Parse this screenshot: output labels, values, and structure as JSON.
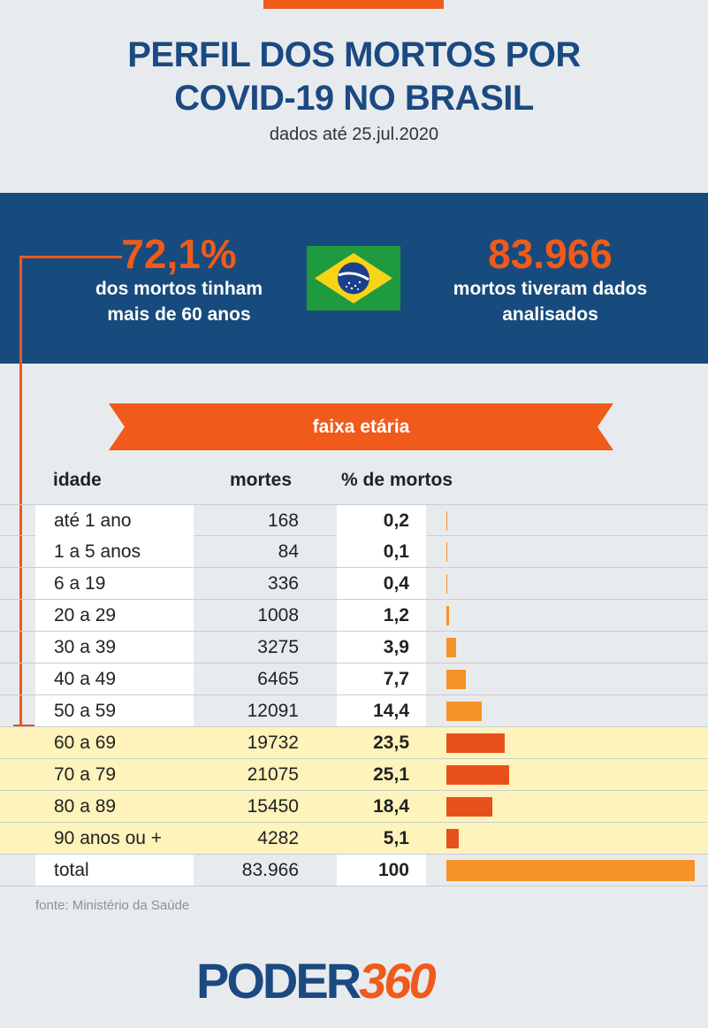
{
  "title_lines": [
    "PERFIL DOS MORTOS POR",
    "COVID-19 NO BRASIL"
  ],
  "subtitle": "dados até 25.jul.2020",
  "stats": {
    "left": {
      "value": "72,1%",
      "desc_lines": [
        "dos mortos tinham",
        "mais de 60 anos"
      ]
    },
    "right": {
      "value": "83.966",
      "desc_lines": [
        "mortos tiveram dados",
        "analisados"
      ]
    }
  },
  "section_label": "faixa etária",
  "columns": {
    "idade": "idade",
    "mortes": "mortes",
    "pct": "% de mortos"
  },
  "source": "fonte: Ministério da Saúde",
  "logo": {
    "text_main": "PODER",
    "text_num": "360"
  },
  "colors": {
    "navy": "#174b7d",
    "orange": "#f05a1a",
    "bar_orange": "#f5922a",
    "bar_red": "#e8501b",
    "highlight": "#fdf3bb"
  },
  "icons": {
    "flag": "brazil-flag-icon"
  },
  "chart_data": {
    "type": "table",
    "title": "PERFIL DOS MORTOS POR COVID-19 NO BRASIL",
    "subtitle": "dados até 25.jul.2020",
    "columns": [
      "idade",
      "mortes",
      "% de mortos"
    ],
    "rows": [
      {
        "idade": "até 1 ano",
        "mortes": "168",
        "pct": "0,2",
        "value": 0.2,
        "highlight": false
      },
      {
        "idade": "1 a 5 anos",
        "mortes": "84",
        "pct": "0,1",
        "value": 0.1,
        "highlight": false
      },
      {
        "idade": "6 a 19",
        "mortes": "336",
        "pct": "0,4",
        "value": 0.4,
        "highlight": false
      },
      {
        "idade": "20 a 29",
        "mortes": "1008",
        "pct": "1,2",
        "value": 1.2,
        "highlight": false
      },
      {
        "idade": "30 a 39",
        "mortes": "3275",
        "pct": "3,9",
        "value": 3.9,
        "highlight": false
      },
      {
        "idade": "40 a 49",
        "mortes": "6465",
        "pct": "7,7",
        "value": 7.7,
        "highlight": false
      },
      {
        "idade": "50 a 59",
        "mortes": "12091",
        "pct": "14,4",
        "value": 14.4,
        "highlight": false
      },
      {
        "idade": "60 a 69",
        "mortes": "19732",
        "pct": "23,5",
        "value": 23.5,
        "highlight": true
      },
      {
        "idade": "70 a 79",
        "mortes": "21075",
        "pct": "25,1",
        "value": 25.1,
        "highlight": true
      },
      {
        "idade": "80 a 89",
        "mortes": "15450",
        "pct": "18,4",
        "value": 18.4,
        "highlight": true
      },
      {
        "idade": "90 anos ou +",
        "mortes": "4282",
        "pct": "5,1",
        "value": 5.1,
        "highlight": true
      },
      {
        "idade": "total",
        "mortes": "83.966",
        "pct": "100",
        "value": 100,
        "highlight": false
      }
    ],
    "bar_max": 100
  }
}
